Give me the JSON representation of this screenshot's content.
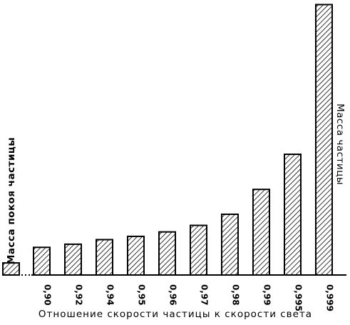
{
  "chart_data": {
    "type": "bar",
    "title": "",
    "xlabel": "Отношение скорости частицы к скорости света",
    "ylabel_left": "Масса покоя частицы",
    "ylabel_right": "Масса частицы",
    "categories": [
      "0,90",
      "0,92",
      "0,94",
      "0,95",
      "0,96",
      "0,97",
      "0,98",
      "0,99",
      "0,995",
      "0,999"
    ],
    "rest_mass": 1,
    "values": [
      2.29,
      2.55,
      2.93,
      3.2,
      3.57,
      4.11,
      5.03,
      7.09,
      10.0,
      22.4
    ],
    "bar_fill": "diagonal-hatch",
    "bar_color": "#000000",
    "background_color": "#ffffff",
    "grid": false,
    "legend": "none"
  }
}
